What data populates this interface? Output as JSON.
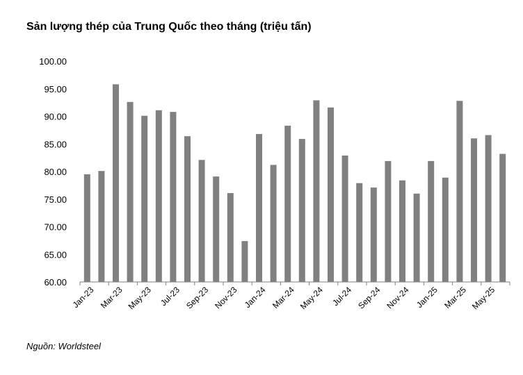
{
  "header": {
    "title": "Sản lượng thép của Trung Quốc theo tháng (triệu tấn)"
  },
  "footer": {
    "source": "Nguồn: Worldsteel"
  },
  "chart_data": {
    "type": "bar",
    "title": "Sản lượng thép của Trung Quốc theo tháng (triệu tấn)",
    "xlabel": "",
    "ylabel": "",
    "ylim": [
      60,
      100
    ],
    "yticks": [
      "60.00",
      "65.00",
      "70.00",
      "75.00",
      "80.00",
      "85.00",
      "90.00",
      "95.00",
      "100.00"
    ],
    "grid": false,
    "legend": "none",
    "bar_color": "#808080",
    "categories": [
      "Jan-23",
      "Feb-23",
      "Mar-23",
      "Apr-23",
      "May-23",
      "Jun-23",
      "Jul-23",
      "Aug-23",
      "Sep-23",
      "Oct-23",
      "Nov-23",
      "Dec-23",
      "Jan-24",
      "Feb-24",
      "Mar-24",
      "Apr-24",
      "May-24",
      "Jun-24",
      "Jul-24",
      "Aug-24",
      "Sep-24",
      "Oct-24",
      "Nov-24",
      "Dec-24",
      "Jan-25",
      "Feb-25",
      "Mar-25",
      "Apr-25",
      "May-25",
      "Jun-25"
    ],
    "tick_labels": [
      "Jan-23",
      "Mar-23",
      "May-23",
      "Jul-23",
      "Sep-23",
      "Nov-23",
      "Jan-24",
      "Mar-24",
      "May-24",
      "Jul-24",
      "Sep-24",
      "Nov-24",
      "Jan-25",
      "Mar-25",
      "May-25"
    ],
    "values": [
      79.5,
      80.1,
      95.8,
      92.6,
      90.1,
      91.1,
      90.8,
      86.4,
      82.1,
      79.1,
      76.1,
      67.4,
      86.8,
      81.2,
      88.3,
      85.9,
      92.9,
      91.6,
      82.9,
      77.9,
      77.1,
      81.9,
      78.4,
      76.0,
      81.9,
      78.9,
      92.8,
      86.0,
      86.6,
      83.2
    ]
  }
}
